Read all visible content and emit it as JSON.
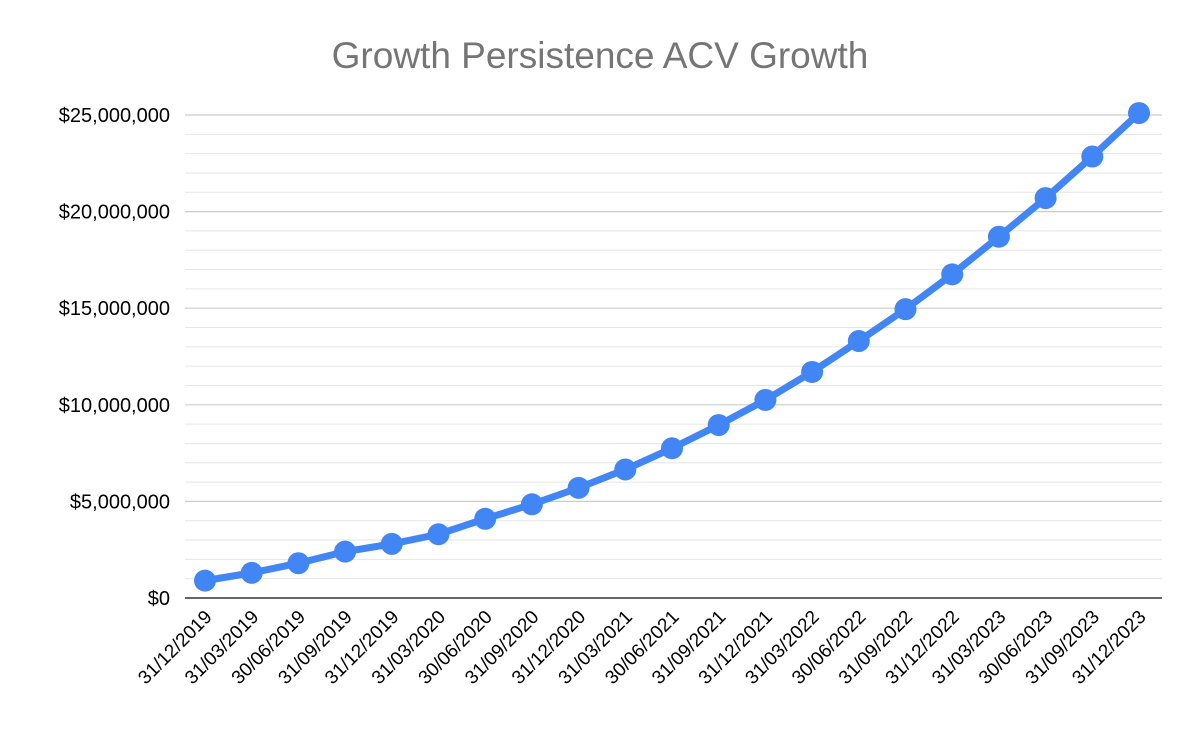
{
  "chart_data": {
    "type": "line",
    "title": "Growth Persistence ACV Growth",
    "xlabel": "",
    "ylabel": "",
    "categories": [
      "31/12/2019",
      "31/03/2019",
      "30/06/2019",
      "31/09/2019",
      "31/12/2019",
      "31/03/2020",
      "30/06/2020",
      "31/09/2020",
      "31/12/2020",
      "31/03/2021",
      "30/06/2021",
      "31/09/2021",
      "31/12/2021",
      "31/03/2022",
      "30/06/2022",
      "31/09/2022",
      "31/12/2022",
      "31/03/2023",
      "30/06/2023",
      "31/09/2023",
      "31/12/2023"
    ],
    "series": [
      {
        "values": [
          900000,
          1300000,
          1800000,
          2400000,
          2800000,
          3300000,
          4100000,
          4850000,
          5700000,
          6650000,
          7750000,
          8950000,
          10250000,
          11700000,
          13300000,
          14950000,
          16750000,
          18700000,
          20700000,
          22850000,
          25100000
        ]
      }
    ],
    "ylim": [
      0,
      25000000
    ],
    "yticks": [
      0,
      5000000,
      10000000,
      15000000,
      20000000,
      25000000
    ],
    "ytick_labels": [
      "$0",
      "$5,000,000",
      "$10,000,000",
      "$15,000,000",
      "$20,000,000",
      "$25,000,000"
    ],
    "grid": true,
    "minor_grid": true,
    "legend": "none",
    "colors": {
      "line": "#4285f4",
      "major_grid": "#cccccc",
      "minor_grid": "#e6e6e6",
      "title": "#757575",
      "axis": "#333333"
    }
  }
}
